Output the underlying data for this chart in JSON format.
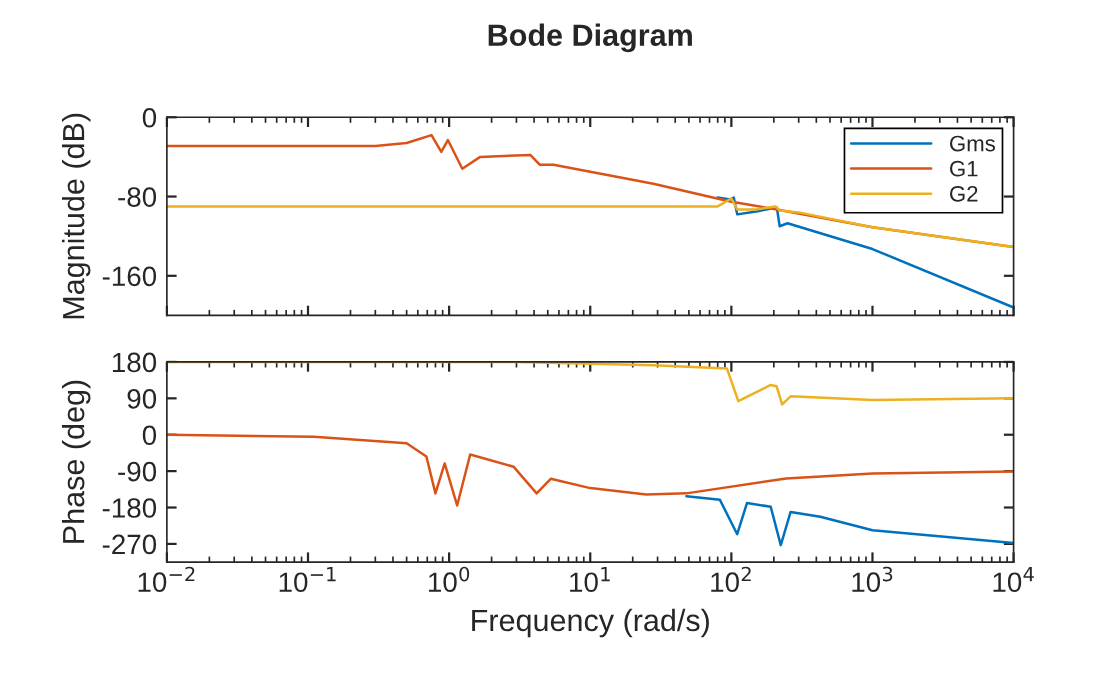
{
  "chart_data": [
    {
      "type": "line",
      "title": "Bode Diagram",
      "ylabel": "Magnitude (dB)",
      "log": "x",
      "xlim": [
        0.01,
        10000
      ],
      "xticks": [
        0.01,
        0.1,
        1,
        10,
        100,
        1000,
        10000
      ],
      "ylim": [
        -200,
        0
      ],
      "yticks": [
        0,
        -80,
        -160
      ],
      "tick_labels": "y",
      "grid": false,
      "legend": "top right",
      "series": [
        {
          "name": "Gms",
          "color": "#0072bd",
          "x": [
            80,
            98,
            104,
            110,
            150,
            210,
            220,
            250,
            1000,
            10000
          ],
          "values": [
            -81,
            -83,
            -81,
            -98,
            -95,
            -91,
            -110,
            -107,
            -133,
            -192
          ]
        },
        {
          "name": "G1",
          "color": "#d95319",
          "x": [
            0.01,
            0.3,
            0.5,
            0.75,
            0.88,
            0.98,
            1.24,
            1.66,
            3.76,
            4.4,
            5.5,
            10,
            28,
            98,
            210,
            1000,
            10000
          ],
          "values": [
            -29,
            -29,
            -26,
            -18,
            -35,
            -23,
            -52,
            -40,
            -38,
            -48,
            -48,
            -55,
            -67,
            -85,
            -93,
            -111,
            -131
          ]
        },
        {
          "name": "G2",
          "color": "#edb120",
          "x": [
            0.01,
            80,
            100,
            110,
            150,
            205,
            220,
            300,
            1000,
            10000
          ],
          "values": [
            -90,
            -90,
            -82,
            -93,
            -93,
            -90,
            -94,
            -96,
            -111,
            -131
          ]
        }
      ]
    },
    {
      "type": "line",
      "ylabel": "Phase (deg)",
      "xlabel": "Frequency (rad/s)",
      "log": "x",
      "xlim": [
        0.01,
        10000
      ],
      "xticks": [
        {
          "value": 0.01,
          "label": "10$^{−2}$"
        },
        {
          "value": 0.1,
          "label": "10$^{−1}$"
        },
        {
          "value": 1,
          "label": "10$^{0}$"
        },
        {
          "value": 10,
          "label": "10$^{1}$"
        },
        {
          "value": 100,
          "label": "10$^{2}$"
        },
        {
          "value": 1000,
          "label": "10$^{3}$"
        },
        {
          "value": 10000,
          "label": "10$^{4}$"
        }
      ],
      "ylim": [
        -315,
        180
      ],
      "yticks": [
        180,
        90,
        0,
        -90,
        -180,
        -270
      ],
      "grid": false,
      "legend": false,
      "series": [
        {
          "color": "#0072bd",
          "x": [
            48,
            83,
            110,
            129,
            190,
            224,
            263,
            427,
            1000,
            10000
          ],
          "values": [
            -152,
            -161,
            -246,
            -169,
            -178,
            -273,
            -191,
            -203,
            -236,
            -268
          ]
        },
        {
          "color": "#d95319",
          "x": [
            0.01,
            0.11,
            0.5,
            0.69,
            0.8,
            0.93,
            1.14,
            1.41,
            2.86,
            4.17,
            5.25,
            10,
            25,
            48,
            245,
            1000,
            10000
          ],
          "values": [
            0,
            -5,
            -21,
            -54,
            -145,
            -71,
            -175,
            -49,
            -79,
            -145,
            -109,
            -132,
            -148,
            -145,
            -108,
            -96,
            -91
          ]
        },
        {
          "color": "#edb120",
          "x": [
            0.01,
            3,
            28,
            93,
            112,
            190,
            209,
            229,
            263,
            1000,
            10000
          ],
          "values": [
            180,
            180,
            172,
            164,
            83,
            123,
            120,
            75,
            95,
            86,
            90
          ]
        }
      ]
    }
  ]
}
